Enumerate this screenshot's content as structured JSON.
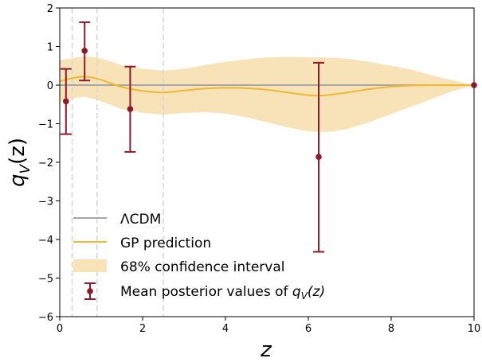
{
  "chart_data": {
    "type": "line",
    "xlabel": "z",
    "ylabel_main": "q",
    "ylabel_sub": "V",
    "ylabel_arg": "(z)",
    "xlim": [
      0,
      10
    ],
    "ylim": [
      -6,
      2
    ],
    "xticks": [
      0,
      2,
      4,
      6,
      8,
      10
    ],
    "yticks": [
      -6,
      -5,
      -4,
      -3,
      -2,
      -1,
      0,
      1,
      2
    ],
    "grid": false,
    "legend_position": "lower-left",
    "vertical_dashed_lines_x": [
      0.3,
      0.9,
      2.5
    ],
    "lcdm": {
      "name": "ΛCDM",
      "color": "#a6a6a6",
      "x": [
        0,
        10
      ],
      "y": [
        0,
        0
      ]
    },
    "gp_prediction": {
      "name": "GP prediction",
      "color": "#f2b630",
      "x": [
        0,
        0.3,
        0.6,
        0.9,
        1.2,
        1.5,
        2.0,
        2.5,
        3.0,
        3.5,
        4.0,
        4.5,
        5.0,
        5.5,
        6.0,
        6.3,
        6.6,
        7.0,
        7.5,
        8.0,
        8.5,
        9.0,
        9.5,
        10.0
      ],
      "y": [
        0.1,
        0.18,
        0.22,
        0.17,
        0.06,
        -0.05,
        -0.15,
        -0.19,
        -0.14,
        -0.09,
        -0.07,
        -0.08,
        -0.12,
        -0.19,
        -0.26,
        -0.27,
        -0.24,
        -0.18,
        -0.1,
        -0.04,
        -0.01,
        0.0,
        0.0,
        0.0
      ]
    },
    "confidence_interval": {
      "name": "68% confidence interval",
      "color": "#f8e3b8",
      "x": [
        0,
        0.3,
        0.6,
        0.9,
        1.2,
        1.5,
        2.0,
        2.5,
        3.0,
        3.5,
        4.0,
        4.5,
        5.0,
        5.5,
        6.0,
        6.3,
        6.6,
        7.0,
        7.5,
        8.0,
        8.5,
        9.0,
        9.5,
        10.0
      ],
      "upper": [
        0.65,
        0.7,
        0.75,
        0.72,
        0.62,
        0.52,
        0.42,
        0.38,
        0.42,
        0.52,
        0.6,
        0.67,
        0.72,
        0.73,
        0.72,
        0.72,
        0.71,
        0.68,
        0.6,
        0.5,
        0.4,
        0.25,
        0.12,
        0.0
      ],
      "lower": [
        -0.45,
        -0.35,
        -0.3,
        -0.38,
        -0.5,
        -0.62,
        -0.72,
        -0.77,
        -0.72,
        -0.7,
        -0.74,
        -0.83,
        -0.96,
        -1.1,
        -1.2,
        -1.22,
        -1.2,
        -1.12,
        -0.95,
        -0.75,
        -0.55,
        -0.35,
        -0.15,
        0.0
      ]
    },
    "mean_posterior": {
      "name_prefix": "Mean posterior values of ",
      "color": "#8b1a2b",
      "points": [
        {
          "x": 0.15,
          "y": -0.42,
          "ylow": -1.27,
          "yhigh": 0.42
        },
        {
          "x": 0.6,
          "y": 0.89,
          "ylow": 0.12,
          "yhigh": 1.63
        },
        {
          "x": 1.7,
          "y": -0.62,
          "ylow": -1.73,
          "yhigh": 0.48
        },
        {
          "x": 6.25,
          "y": -1.86,
          "ylow": -4.32,
          "yhigh": 0.58
        },
        {
          "x": 10.0,
          "y": 0.0,
          "ylow": 0.0,
          "yhigh": 0.0
        }
      ]
    }
  }
}
